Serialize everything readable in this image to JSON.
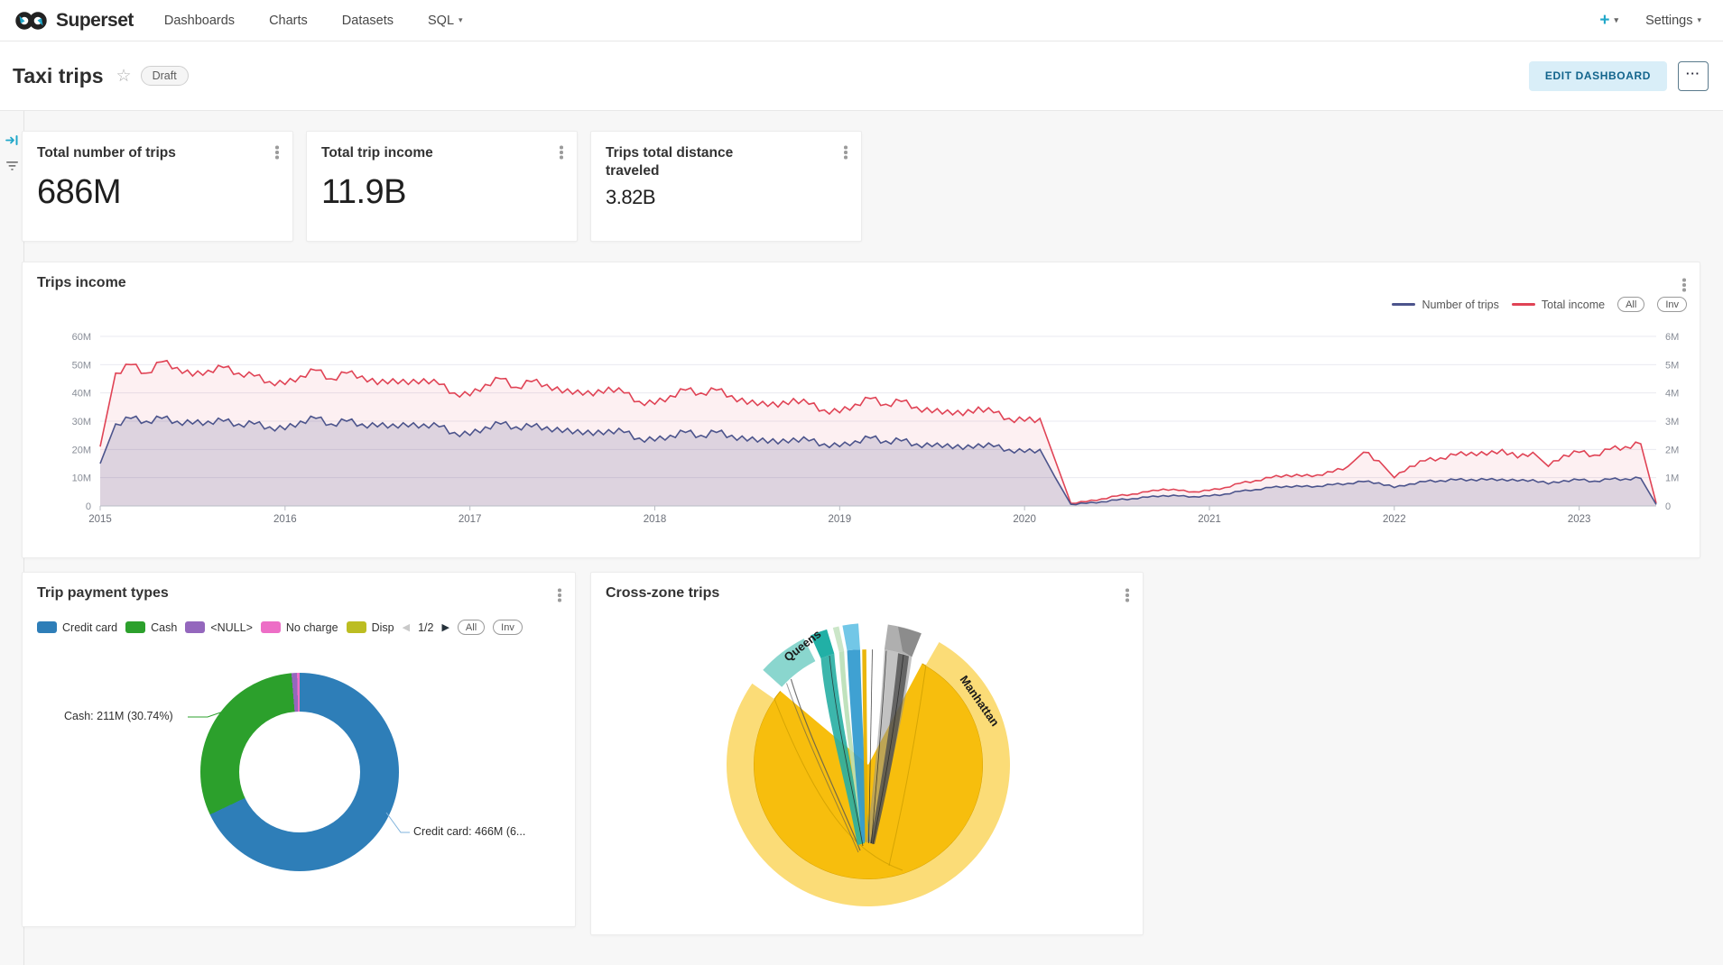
{
  "navbar": {
    "brand": "Superset",
    "menu": [
      {
        "label": "Dashboards"
      },
      {
        "label": "Charts"
      },
      {
        "label": "Datasets"
      },
      {
        "label": "SQL"
      }
    ],
    "new_label": "+",
    "settings_label": "Settings"
  },
  "header": {
    "title": "Taxi trips",
    "badge": "Draft",
    "edit_button": "EDIT DASHBOARD",
    "more_button": "···"
  },
  "cards": [
    {
      "title": "Total number of trips",
      "value": "686M"
    },
    {
      "title": "Total trip income",
      "value": "11.9B"
    },
    {
      "title": "Trips total distance traveled",
      "value": "3.82B"
    }
  ],
  "trips_income": {
    "title": "Trips income",
    "all_button": "All",
    "inv_button": "Inv",
    "chart_data": {
      "type": "area",
      "x_start": "2015-01",
      "x_interval": "month",
      "x_tick_labels": [
        "2015",
        "2016",
        "2017",
        "2018",
        "2019",
        "2020",
        "2021",
        "2022",
        "2023"
      ],
      "y_left": {
        "ticks": [
          "0",
          "10M",
          "20M",
          "30M",
          "40M",
          "50M",
          "60M"
        ],
        "max": 60
      },
      "y_right": {
        "ticks": [
          "0",
          "1M",
          "2M",
          "3M",
          "4M",
          "5M",
          "6M"
        ],
        "max": 6
      },
      "legend_position": "top-right",
      "grid": true,
      "series": [
        {
          "name": "Number of trips",
          "axis": "left",
          "unit": "M",
          "color": "#4C548C",
          "values": [
            15,
            29,
            31,
            30,
            31,
            30,
            29,
            30,
            30,
            29,
            29,
            28,
            27,
            30,
            31,
            29,
            30,
            29,
            28,
            29,
            28,
            29,
            28,
            26,
            25,
            28,
            29,
            28,
            28,
            28,
            26,
            27,
            25,
            27,
            26,
            24,
            23,
            25,
            26,
            25,
            26,
            25,
            23,
            24,
            22,
            24,
            23,
            22,
            21,
            23,
            24,
            23,
            23,
            22,
            21,
            22,
            20,
            22,
            21,
            20,
            19,
            20,
            10,
            0.6,
            0.9,
            1.5,
            2.1,
            2.6,
            3.1,
            3.7,
            3.5,
            3.3,
            3.5,
            4.2,
            5.2,
            5.8,
            6.5,
            7,
            6.8,
            7,
            7.5,
            8,
            8.6,
            8.2,
            6.5,
            7.8,
            8.6,
            9,
            9.2,
            9.4,
            9.2,
            9.5,
            8.8,
            9.3,
            7.8,
            9,
            9.2,
            8.8,
            9.4,
            9.6,
            9.8,
            0.5
          ]
        },
        {
          "name": "Total income",
          "axis": "right",
          "unit": "M",
          "color": "#E04355",
          "values": [
            2.1,
            4.7,
            5,
            4.7,
            5.1,
            4.9,
            4.6,
            4.8,
            4.9,
            4.7,
            4.6,
            4.4,
            4.3,
            4.6,
            4.8,
            4.5,
            4.7,
            4.6,
            4.3,
            4.5,
            4.3,
            4.5,
            4.3,
            4,
            3.9,
            4.3,
            4.5,
            4.2,
            4.4,
            4.3,
            4,
            4.1,
            3.9,
            4.2,
            4,
            3.7,
            3.6,
            3.9,
            4.1,
            4,
            4.1,
            3.9,
            3.6,
            3.7,
            3.5,
            3.8,
            3.6,
            3.4,
            3.3,
            3.6,
            3.8,
            3.6,
            3.7,
            3.5,
            3.3,
            3.4,
            3.2,
            3.5,
            3.3,
            3.1,
            3,
            3.1,
            1.6,
            0.1,
            0.15,
            0.25,
            0.35,
            0.42,
            0.5,
            0.6,
            0.55,
            0.5,
            0.55,
            0.65,
            0.8,
            0.9,
            1,
            1.1,
            1.05,
            1.1,
            1.2,
            1.4,
            1.9,
            1.6,
            1,
            1.4,
            1.6,
            1.7,
            1.8,
            1.9,
            1.8,
            2,
            1.7,
            1.9,
            1.4,
            1.8,
            1.9,
            1.8,
            2,
            2.1,
            2.2,
            0.1
          ]
        }
      ]
    }
  },
  "payment_types": {
    "title": "Trip payment types",
    "pagination": "1/2",
    "all_button": "All",
    "inv_button": "Inv",
    "chart_data": {
      "type": "pie",
      "legend": [
        {
          "label": "Credit card",
          "color": "#2E7EB8"
        },
        {
          "label": "Cash",
          "color": "#2CA02C"
        },
        {
          "label": "<NULL>",
          "color": "#9467BD"
        },
        {
          "label": "No charge",
          "color": "#ED6EC6"
        },
        {
          "label": "Disp",
          "color": "#BCBD22"
        }
      ],
      "slices": [
        {
          "label": "Credit card",
          "color": "#2E7EB8",
          "value_pct": 67.94,
          "callout": "Credit card: 466M (6..."
        },
        {
          "label": "Cash",
          "color": "#2CA02C",
          "value_pct": 30.74,
          "callout": "Cash: 211M (30.74%)"
        },
        {
          "label": "<NULL>",
          "color": "#9467BD",
          "value_pct": 0.9
        },
        {
          "label": "No charge",
          "color": "#ED6EC6",
          "value_pct": 0.42
        }
      ]
    }
  },
  "cross_zone": {
    "title": "Cross-zone trips",
    "chart_data": {
      "type": "chord",
      "zones": [
        {
          "label": "Manhattan",
          "color": "#F7BE0D"
        },
        {
          "label": "Queens",
          "color": "#8AD6CE"
        }
      ]
    }
  }
}
